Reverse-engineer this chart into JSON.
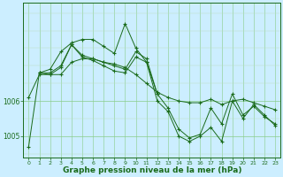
{
  "background_color": "#cceeff",
  "plot_bg_color": "#cceeff",
  "line_color": "#1a6b1a",
  "grid_color_major": "#88cc88",
  "grid_color_minor": "#bbddbb",
  "xlabel": "Graphe pression niveau de la mer (hPa)",
  "xlabel_fontsize": 6.5,
  "marker": "+",
  "marker_size": 3,
  "linewidth": 0.7,
  "xlim": [
    -0.5,
    23.5
  ],
  "ylim": [
    1004.4,
    1008.8
  ],
  "yticks": [
    1005,
    1006
  ],
  "xticks": [
    0,
    1,
    2,
    3,
    4,
    5,
    6,
    7,
    8,
    9,
    10,
    11,
    12,
    13,
    14,
    15,
    16,
    17,
    18,
    19,
    20,
    21,
    22,
    23
  ],
  "series": [
    {
      "x": [
        0,
        1,
        2,
        3,
        4,
        5,
        6,
        7,
        8,
        9,
        10,
        11,
        12,
        13,
        14,
        15,
        16,
        17,
        18,
        19,
        20,
        21,
        22,
        23
      ],
      "y": [
        1006.1,
        1006.75,
        1006.75,
        1006.75,
        1007.1,
        1007.2,
        1007.2,
        1007.1,
        1007.05,
        1006.95,
        1006.75,
        1006.5,
        1006.25,
        1006.1,
        1006.0,
        1005.95,
        1005.95,
        1006.05,
        1005.9,
        1006.0,
        1006.05,
        1005.95,
        1005.85,
        1005.75
      ]
    },
    {
      "x": [
        0,
        1,
        2,
        3,
        4,
        5,
        6,
        7,
        8,
        9,
        10,
        11,
        12
      ],
      "y": [
        1004.7,
        1006.8,
        1006.9,
        1007.4,
        1007.65,
        1007.75,
        1007.75,
        1007.55,
        1007.35,
        1008.2,
        1007.5,
        1007.1,
        1006.2
      ]
    },
    {
      "x": [
        1,
        2,
        3,
        4,
        5,
        6,
        7,
        8,
        9,
        10,
        11,
        12,
        13,
        14,
        15,
        16,
        17,
        18,
        19,
        20,
        21,
        22,
        23
      ],
      "y": [
        1006.8,
        1006.8,
        1007.0,
        1007.6,
        1007.3,
        1007.2,
        1007.1,
        1007.0,
        1006.9,
        1007.4,
        1007.2,
        1006.2,
        1005.8,
        1005.2,
        1004.95,
        1005.05,
        1005.8,
        1005.35,
        1006.2,
        1005.6,
        1005.85,
        1005.55,
        1005.35
      ]
    },
    {
      "x": [
        1,
        2,
        3,
        4,
        5,
        6,
        7,
        8,
        9,
        10,
        11,
        12,
        13,
        14,
        15,
        16,
        17,
        18,
        19,
        20,
        21,
        22,
        23
      ],
      "y": [
        1006.8,
        1006.75,
        1006.95,
        1007.6,
        1007.25,
        1007.15,
        1007.0,
        1006.85,
        1006.8,
        1007.25,
        1007.1,
        1006.0,
        1005.7,
        1005.0,
        1004.85,
        1005.0,
        1005.25,
        1004.85,
        1006.0,
        1005.5,
        1005.9,
        1005.6,
        1005.3
      ]
    }
  ]
}
